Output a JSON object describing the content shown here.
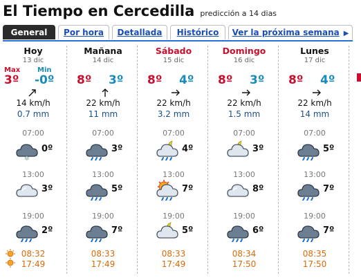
{
  "header": {
    "title": "El Tiempo en Cercedilla",
    "subtitle": "predicción a 14 dias"
  },
  "tabs": [
    {
      "label": "General"
    },
    {
      "label": "Por hora"
    },
    {
      "label": "Detallada"
    },
    {
      "label": "Histórico"
    },
    {
      "label": "Ver la próxima semana"
    }
  ],
  "labels": {
    "max": "Max",
    "min": "Min"
  },
  "colors": {
    "max": "#c8102e",
    "min": "#1a8ab8",
    "tab_active": "#2b2b2b",
    "link": "#1a4fb8",
    "sun_text": "#d96a0a"
  },
  "days": [
    {
      "name": "Hoy",
      "date": "13 dic",
      "max": "3º",
      "min": "-0º",
      "wind": "14 km/h",
      "wind_icon": "arrow-up-right-icon",
      "rain": "0.7 mm",
      "hours": [
        {
          "time": "07:00",
          "icon": "cloud-snow-icon",
          "temp": "0º"
        },
        {
          "time": "13:00",
          "icon": "cloud-icon",
          "temp": "3º"
        },
        {
          "time": "19:00",
          "icon": "cloud-rain-icon",
          "temp": "2º"
        }
      ],
      "sunrise": "08:32",
      "sunset": "17:49"
    },
    {
      "name": "Mañana",
      "date": "14 dic",
      "max": "8º",
      "min": "3º",
      "wind": "22 km/h",
      "wind_icon": "arrow-up-icon",
      "rain": "11 mm",
      "hours": [
        {
          "time": "07:00",
          "icon": "cloud-rain-icon",
          "temp": "3º"
        },
        {
          "time": "13:00",
          "icon": "cloud-rain-icon",
          "temp": "5º"
        },
        {
          "time": "19:00",
          "icon": "cloud-rain-icon",
          "temp": "7º"
        }
      ],
      "sunrise": "08:33",
      "sunset": "17:49"
    },
    {
      "name": "Sábado",
      "date": "15 dic",
      "max": "8º",
      "min": "4º",
      "wind": "22 km/h",
      "wind_icon": "arrow-right-icon",
      "rain": "3.2 mm",
      "hours": [
        {
          "time": "07:00",
          "icon": "moon-cloud-rain-icon",
          "temp": "4º"
        },
        {
          "time": "13:00",
          "icon": "sun-cloud-rain-icon",
          "temp": "7º"
        },
        {
          "time": "19:00",
          "icon": "moon-cloud-icon",
          "temp": "5º"
        }
      ],
      "sunrise": "08:33",
      "sunset": "17:49"
    },
    {
      "name": "Domingo",
      "date": "16 dic",
      "max": "8º",
      "min": "3º",
      "wind": "22 km/h",
      "wind_icon": "arrow-right-icon",
      "rain": "1.5 mm",
      "hours": [
        {
          "time": "07:00",
          "icon": "moon-cloud-icon",
          "temp": "3º"
        },
        {
          "time": "13:00",
          "icon": "cloud-icon",
          "temp": "8º"
        },
        {
          "time": "19:00",
          "icon": "cloud-rain-icon",
          "temp": "6º"
        }
      ],
      "sunrise": "08:34",
      "sunset": "17:50"
    },
    {
      "name": "Lunes",
      "date": "17 dic",
      "max": "8º",
      "min": "4º",
      "wind": "22 km/h",
      "wind_icon": "arrow-right-icon",
      "rain": "14 mm",
      "hours": [
        {
          "time": "07:00",
          "icon": "cloud-rain-icon",
          "temp": "5º"
        },
        {
          "time": "13:00",
          "icon": "cloud-rain-icon",
          "temp": "7º"
        },
        {
          "time": "19:00",
          "icon": "cloud-rain-icon",
          "temp": "7º"
        }
      ],
      "sunrise": "08:35",
      "sunset": "17:50"
    }
  ]
}
